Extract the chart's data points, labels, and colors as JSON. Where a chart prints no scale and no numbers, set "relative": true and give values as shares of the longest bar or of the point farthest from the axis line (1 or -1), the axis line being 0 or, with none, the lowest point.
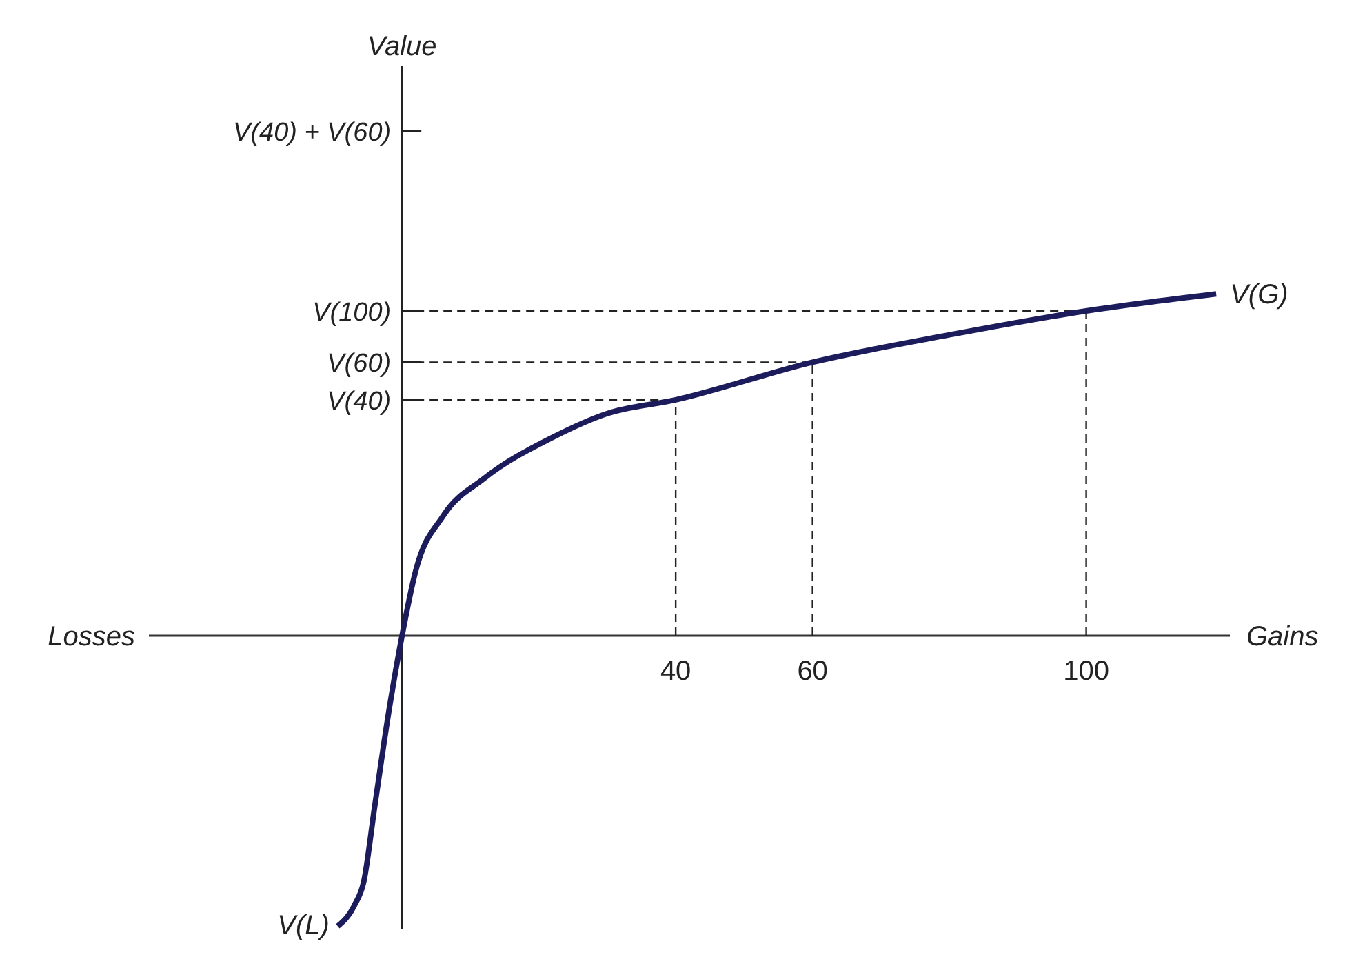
{
  "chart_data": {
    "type": "line",
    "relative": true,
    "xlabel": "Gains",
    "x": [
      -9.4,
      -7,
      -5.6,
      -4,
      -2,
      0,
      2,
      6,
      12,
      22,
      30,
      40,
      60,
      80,
      100,
      119
    ],
    "series": [
      {
        "color": "#1c1c5c",
        "values": [
          -0.85,
          -0.79,
          -0.72,
          -0.5,
          -0.23,
          0,
          0.19,
          0.35,
          0.46,
          0.58,
          0.65,
          0.69,
          0.8,
          0.88,
          0.95,
          1.0
        ]
      }
    ],
    "xlim": [
      -37,
      121
    ],
    "xticks": [
      40,
      60,
      100
    ],
    "ref_lines": [
      {
        "axis": "x",
        "value": 40,
        "line_style": "dashed",
        "color": "#222222"
      },
      {
        "axis": "x",
        "value": 60,
        "line_style": "dashed",
        "color": "#222222"
      },
      {
        "axis": "x",
        "value": 100,
        "line_style": "dashed",
        "color": "#222222"
      },
      {
        "axis": "y",
        "value": 0.69,
        "label": "V(40)",
        "line_style": "dashed",
        "color": "#222222"
      },
      {
        "axis": "y",
        "value": 0.8,
        "label": "V(60)",
        "line_style": "dashed",
        "color": "#222222"
      },
      {
        "axis": "y",
        "value": 0.95,
        "label": "V(100)",
        "line_style": "dashed",
        "color": "#222222"
      }
    ],
    "annotations": [
      "Losses",
      "Value",
      "V(40) + V(60)",
      {
        "text": "V(G)",
        "x": 119,
        "y": 1.0
      },
      {
        "text": "V(L)",
        "x": -9.4,
        "y": -0.85
      }
    ]
  }
}
